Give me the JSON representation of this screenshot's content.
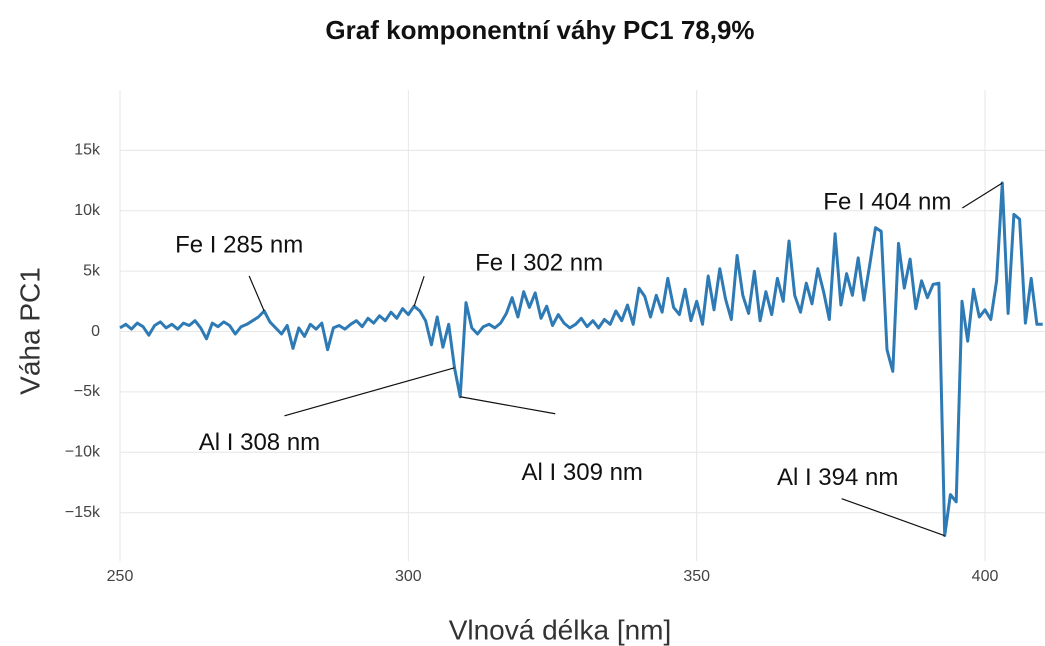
{
  "chart_data": {
    "type": "line",
    "title": "Graf komponentní váhy PC1  78,9%",
    "xlabel": "Vlnová délka [nm]",
    "ylabel": "Váha PC1",
    "color": "#2e7ab5",
    "grid": true,
    "xlim": [
      250,
      410.4
    ],
    "ylim": [
      -19000,
      20000
    ],
    "xticks": [
      250,
      300,
      350,
      400
    ],
    "yticks": [
      {
        "value": -15000,
        "label": "−15k"
      },
      {
        "value": -10000,
        "label": "−10k"
      },
      {
        "value": -5000,
        "label": "−5k"
      },
      0,
      {
        "value": 5000,
        "label": "5k"
      },
      {
        "value": 10000,
        "label": "10k"
      },
      {
        "value": 15000,
        "label": "15k"
      }
    ],
    "x": [
      250,
      251,
      252,
      253,
      254,
      255,
      256,
      257,
      258,
      259,
      260,
      261,
      262,
      263,
      264,
      265,
      266,
      267,
      268,
      269,
      270,
      271,
      272,
      273,
      274,
      275,
      276,
      277,
      278,
      279,
      280,
      281,
      282,
      283,
      284,
      285,
      286,
      287,
      288,
      289,
      290,
      291,
      292,
      293,
      294,
      295,
      296,
      297,
      298,
      299,
      300,
      301,
      302,
      303,
      304,
      305,
      306,
      307,
      308,
      309,
      310,
      311,
      312,
      313,
      314,
      315,
      316,
      317,
      318,
      319,
      320,
      321,
      322,
      323,
      324,
      325,
      326,
      327,
      328,
      329,
      330,
      331,
      332,
      333,
      334,
      335,
      336,
      337,
      338,
      339,
      340,
      341,
      342,
      343,
      344,
      345,
      346,
      347,
      348,
      349,
      350,
      351,
      352,
      353,
      354,
      355,
      356,
      357,
      358,
      359,
      360,
      361,
      362,
      363,
      364,
      365,
      366,
      367,
      368,
      369,
      370,
      371,
      372,
      373,
      374,
      375,
      376,
      377,
      378,
      379,
      380,
      381,
      382,
      383,
      384,
      385,
      386,
      387,
      388,
      389,
      390,
      391,
      392,
      393,
      394,
      395,
      396,
      397,
      398,
      399,
      400,
      401,
      402,
      403,
      404,
      405,
      406,
      407,
      408,
      409,
      410
    ],
    "values": [
      300,
      600,
      200,
      700,
      400,
      -300,
      500,
      800,
      300,
      600,
      200,
      700,
      500,
      900,
      300,
      -600,
      700,
      400,
      800,
      500,
      -200,
      400,
      600,
      900,
      1200,
      1700,
      800,
      300,
      -200,
      500,
      -1400,
      300,
      -400,
      600,
      200,
      700,
      -1500,
      300,
      500,
      200,
      600,
      900,
      400,
      1100,
      700,
      1300,
      900,
      1600,
      1100,
      1900,
      1400,
      2100,
      1700,
      900,
      -1100,
      1200,
      -1300,
      600,
      -3000,
      -5400,
      2400,
      300,
      -200,
      400,
      600,
      300,
      700,
      1500,
      2800,
      1200,
      3300,
      2000,
      3200,
      1100,
      2100,
      500,
      1400,
      700,
      300,
      600,
      1100,
      400,
      900,
      300,
      1000,
      600,
      1700,
      900,
      2200,
      600,
      3600,
      2900,
      1200,
      3000,
      1600,
      4400,
      2000,
      1400,
      3500,
      900,
      2500,
      600,
      4600,
      1800,
      5200,
      2700,
      1000,
      6300,
      3000,
      1500,
      5000,
      900,
      3300,
      1400,
      4400,
      2500,
      7500,
      3000,
      1600,
      4000,
      2300,
      5200,
      3300,
      1000,
      8100,
      2200,
      4800,
      3000,
      6100,
      2600,
      5500,
      8600,
      8300,
      -1500,
      -3300,
      7300,
      3600,
      6000,
      1900,
      4200,
      2800,
      3900,
      4000,
      -16900,
      -13500,
      -14100,
      2500,
      -800,
      3500,
      1200,
      1800,
      1000,
      4200,
      12300,
      1500,
      9700,
      9300,
      700,
      4400,
      600,
      600
    ],
    "annotations": [
      {
        "text": "Fe I 285 nm",
        "x": 275,
        "y": 1700
      },
      {
        "text": "Fe I 302 nm",
        "x": 301,
        "y": 2100
      },
      {
        "text": "Al I 308 nm",
        "x": 308,
        "y": -3000
      },
      {
        "text": "Al I 309 nm",
        "x": 309,
        "y": -5400
      },
      {
        "text": "Al I 394 nm",
        "x": 393,
        "y": -16900
      },
      {
        "text": "Fe I 404 nm",
        "x": 403,
        "y": 12300
      }
    ]
  }
}
